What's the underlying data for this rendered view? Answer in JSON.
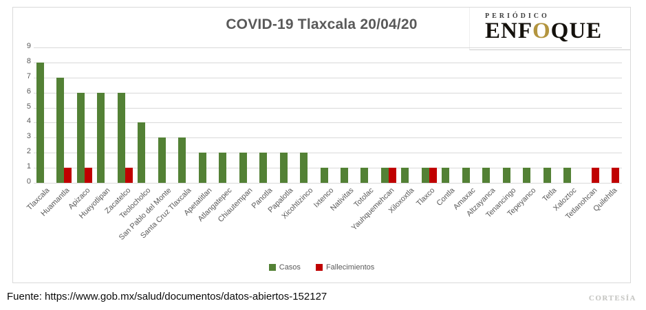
{
  "chart_data": {
    "type": "bar",
    "title": "COVID-19 Tlaxcala 20/04/20",
    "categories": [
      "Tlaxcala",
      "Huamantla",
      "Apizaco",
      "Hueyotlipan",
      "Zacatelco",
      "Teolocholco",
      "San Pablo del Monte",
      "Santa Cruz Tlaxcala",
      "Apetatitlan",
      "Atlangatepec",
      "Chiautempan",
      "Panotla",
      "Papalotla",
      "Xicohtizinco",
      "Ixtenco",
      "Nativitas",
      "Totolac",
      "Yauhquemehcan",
      "Xiloxoxtla",
      "Tlaxco",
      "Contla",
      "Amaxac",
      "Altzayanca",
      "Tenancingo",
      "Tepeyanco",
      "Tetla",
      "Xaloztoc",
      "Tetlanohcan",
      "Quilehtla"
    ],
    "series": [
      {
        "name": "Casos",
        "color": "#538135",
        "values": [
          8,
          7,
          6,
          6,
          6,
          4,
          3,
          3,
          2,
          2,
          2,
          2,
          2,
          2,
          1,
          1,
          1,
          1,
          1,
          1,
          1,
          1,
          1,
          1,
          1,
          1,
          1,
          0,
          0
        ]
      },
      {
        "name": "Fallecimientos",
        "color": "#c00000",
        "values": [
          0,
          1,
          1,
          0,
          1,
          0,
          0,
          0,
          0,
          0,
          0,
          0,
          0,
          0,
          0,
          0,
          0,
          1,
          0,
          1,
          0,
          0,
          0,
          0,
          0,
          0,
          0,
          1,
          1
        ]
      }
    ],
    "xlabel": "",
    "ylabel": "",
    "ylim": [
      0,
      9
    ],
    "yticks": [
      0,
      1,
      2,
      3,
      4,
      5,
      6,
      7,
      8,
      9
    ],
    "grid": true,
    "legend_position": "bottom"
  },
  "logo": {
    "kicker": "PERIÓDICO",
    "name_prefix": "ENF",
    "name_accent": "O",
    "name_suffix": "QUE",
    "accent_color": "#b3953f"
  },
  "footer": {
    "source": "Fuente: https://www.gob.mx/salud/documentos/datos-abiertos-152127",
    "courtesy": "CORTESÍA"
  }
}
